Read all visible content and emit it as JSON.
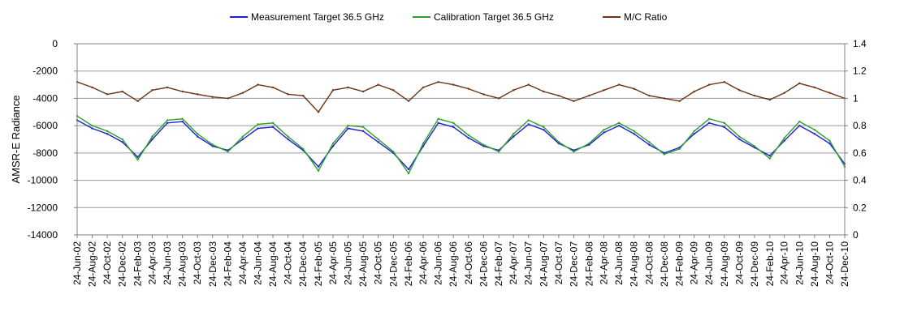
{
  "chart_data": {
    "type": "line",
    "title": "",
    "ylabel": "AMSR-E Radiance",
    "y2label": "",
    "ylim": [
      -14000,
      0
    ],
    "y2lim": [
      0,
      1.4
    ],
    "yticks": [
      "0",
      "-2000",
      "-4000",
      "-6000",
      "-8000",
      "-10000",
      "-12000",
      "-14000"
    ],
    "y2ticks": [
      "1.4",
      "1.2",
      "1",
      "0.8",
      "0.6",
      "0.4",
      "0.2",
      "0"
    ],
    "x_tick_labels": [
      "24-Jun-02",
      "24-Aug-02",
      "24-Oct-02",
      "24-Dec-02",
      "24-Feb-03",
      "24-Apr-03",
      "24-Jun-03",
      "24-Aug-03",
      "24-Oct-03",
      "24-Dec-03",
      "24-Feb-04",
      "24-Apr-04",
      "24-Jun-04",
      "24-Aug-04",
      "24-Oct-04",
      "24-Dec-04",
      "24-Feb-05",
      "24-Apr-05",
      "24-Jun-05",
      "24-Aug-05",
      "24-Oct-05",
      "24-Dec-05",
      "24-Feb-06",
      "24-Apr-06",
      "24-Jun-06",
      "24-Aug-06",
      "24-Oct-06",
      "24-Dec-06",
      "24-Feb-07",
      "24-Apr-07",
      "24-Jun-07",
      "24-Aug-07",
      "24-Oct-07",
      "24-Dec-07",
      "24-Feb-08",
      "24-Apr-08",
      "24-Jun-08",
      "24-Aug-08",
      "24-Oct-08",
      "24-Dec-08",
      "24-Feb-09",
      "24-Apr-09",
      "24-Jun-09",
      "24-Aug-09",
      "24-Oct-09",
      "24-Dec-09",
      "24-Feb-10",
      "24-Apr-10",
      "24-Jun-10",
      "24-Aug-10",
      "24-Oct-10",
      "24-Dec-10"
    ],
    "xlim": [
      "2002-06-24",
      "2010-12-24"
    ],
    "grid": "horizontal",
    "legend": "top",
    "x": [
      "2002-06-24",
      "2002-08-24",
      "2002-10-24",
      "2002-12-24",
      "2003-02-24",
      "2003-04-24",
      "2003-06-24",
      "2003-08-24",
      "2003-10-24",
      "2003-12-24",
      "2004-02-24",
      "2004-04-24",
      "2004-06-24",
      "2004-08-24",
      "2004-10-24",
      "2004-12-24",
      "2005-02-24",
      "2005-04-24",
      "2005-06-24",
      "2005-08-24",
      "2005-10-24",
      "2005-12-24",
      "2006-02-24",
      "2006-04-24",
      "2006-06-24",
      "2006-08-24",
      "2006-10-24",
      "2006-12-24",
      "2007-02-24",
      "2007-04-24",
      "2007-06-24",
      "2007-08-24",
      "2007-10-24",
      "2007-12-24",
      "2008-02-24",
      "2008-04-24",
      "2008-06-24",
      "2008-08-24",
      "2008-10-24",
      "2008-12-24",
      "2009-02-24",
      "2009-04-24",
      "2009-06-24",
      "2009-08-24",
      "2009-10-24",
      "2009-12-24",
      "2010-02-24",
      "2010-04-24",
      "2010-06-24",
      "2010-08-24",
      "2010-10-24",
      "2010-12-24"
    ],
    "series": [
      {
        "name": "Measurement Target 36.5 GHz",
        "color": "#1f1fd6",
        "axis": "left",
        "values": [
          -5600,
          -6200,
          -6600,
          -7200,
          -8300,
          -7000,
          -5800,
          -5700,
          -6800,
          -7500,
          -7800,
          -7000,
          -6200,
          -6100,
          -7000,
          -7800,
          -9000,
          -7500,
          -6200,
          -6400,
          -7200,
          -8000,
          -9200,
          -7500,
          -5800,
          -6100,
          -6900,
          -7500,
          -7800,
          -6800,
          -5900,
          -6300,
          -7300,
          -7800,
          -7400,
          -6500,
          -6000,
          -6600,
          -7400,
          -8000,
          -7600,
          -6600,
          -5800,
          -6100,
          -7000,
          -7600,
          -8200,
          -7100,
          -6000,
          -6600,
          -7300,
          -8800
        ]
      },
      {
        "name": "Calibration Target 36.5 GHz",
        "color": "#2ca02c",
        "axis": "left",
        "values": [
          -5300,
          -6000,
          -6400,
          -7000,
          -8500,
          -6800,
          -5600,
          -5500,
          -6600,
          -7400,
          -7900,
          -6800,
          -5900,
          -5800,
          -6800,
          -7700,
          -9300,
          -7300,
          -6000,
          -6100,
          -7000,
          -7900,
          -9500,
          -7300,
          -5500,
          -5800,
          -6700,
          -7400,
          -7900,
          -6600,
          -5600,
          -6100,
          -7200,
          -7900,
          -7300,
          -6300,
          -5800,
          -6400,
          -7200,
          -8100,
          -7700,
          -6400,
          -5500,
          -5800,
          -6800,
          -7500,
          -8400,
          -6900,
          -5700,
          -6300,
          -7100,
          -9000
        ]
      },
      {
        "name": "M/C Ratio",
        "color": "#6b3310",
        "axis": "right",
        "values": [
          1.12,
          1.08,
          1.03,
          1.05,
          0.98,
          1.06,
          1.08,
          1.05,
          1.03,
          1.01,
          1.0,
          1.04,
          1.1,
          1.08,
          1.03,
          1.02,
          0.9,
          1.06,
          1.08,
          1.05,
          1.1,
          1.06,
          0.98,
          1.08,
          1.12,
          1.1,
          1.07,
          1.03,
          1.0,
          1.06,
          1.1,
          1.05,
          1.02,
          0.98,
          1.02,
          1.06,
          1.1,
          1.07,
          1.02,
          1.0,
          0.98,
          1.05,
          1.1,
          1.12,
          1.06,
          1.02,
          0.99,
          1.04,
          1.11,
          1.08,
          1.04,
          1.0
        ]
      }
    ]
  }
}
